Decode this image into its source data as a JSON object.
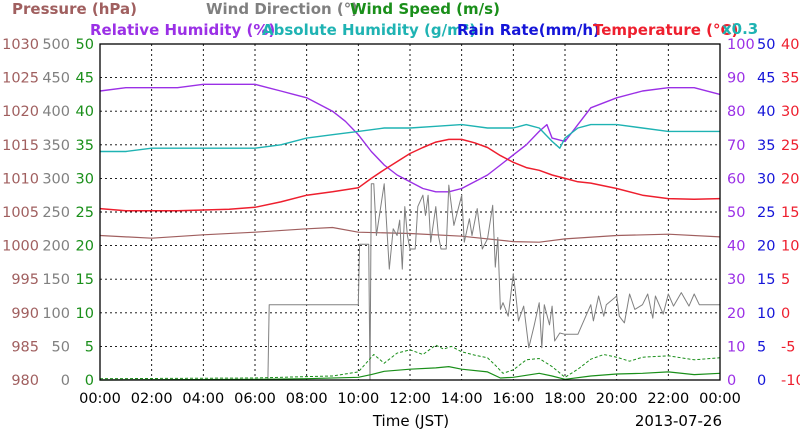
{
  "chart_data": {
    "type": "line",
    "date_label": "2013-07-26",
    "xlabel": "Time (JST)",
    "x_ticks": [
      "00:00",
      "02:00",
      "04:00",
      "06:00",
      "08:00",
      "10:00",
      "12:00",
      "14:00",
      "16:00",
      "18:00",
      "20:00",
      "22:00",
      "00:00"
    ],
    "x_range_hours": [
      0,
      24
    ],
    "legend_row1": [
      {
        "key": "pressure",
        "text": "Pressure (hPa)",
        "color": "#a05f5f"
      },
      {
        "key": "wind_dir",
        "text": "Wind Direction (°)",
        "color": "#808080"
      },
      {
        "key": "wind_speed",
        "text": "Wind Speed (m/s)",
        "color": "#1a8f1a"
      }
    ],
    "legend_row2": [
      {
        "key": "rh",
        "text": "Relative Humidity (%)",
        "color": "#9b30e6"
      },
      {
        "key": "ah",
        "text": "Absolute Humidity (g/m³)",
        "color": "#1fb3b3"
      },
      {
        "key": "rain",
        "text": "Rain Rate(mm/h)",
        "color": "#1515d8"
      },
      {
        "key": "temp",
        "text": "Temperature (°C)",
        "color": "#ee1f2e"
      }
    ],
    "ah_scale_note": "x0.3",
    "left_axes": [
      {
        "name": "pressure",
        "color": "#a05f5f",
        "range": [
          980,
          1030
        ],
        "ticks": [
          "1030",
          "1025",
          "1020",
          "1015",
          "1010",
          "1005",
          "1000",
          "995",
          "990",
          "985",
          "980"
        ]
      },
      {
        "name": "wind_direction",
        "color": "#808080",
        "range": [
          0,
          500
        ],
        "ticks": [
          "500",
          "450",
          "400",
          "350",
          "300",
          "250",
          "200",
          "150",
          "100",
          "50",
          "0"
        ]
      },
      {
        "name": "wind_speed",
        "color": "#1a8f1a",
        "range": [
          0,
          50
        ],
        "ticks": [
          "50",
          "45",
          "40",
          "35",
          "30",
          "25",
          "20",
          "15",
          "10",
          "5",
          "0"
        ]
      }
    ],
    "right_axes": [
      {
        "name": "humidity",
        "color": "#9b30e6",
        "range": [
          0,
          100
        ],
        "ticks": [
          "100",
          "90",
          "80",
          "70",
          "60",
          "50",
          "40",
          "30",
          "20",
          "10",
          "0"
        ]
      },
      {
        "name": "rain_rate",
        "color": "#1515d8",
        "range": [
          0,
          50
        ],
        "ticks": [
          "50",
          "45",
          "40",
          "35",
          "30",
          "25",
          "20",
          "15",
          "10",
          "5",
          "0"
        ]
      },
      {
        "name": "temperature",
        "color": "#ee1f2e",
        "range": [
          -10,
          40
        ],
        "ticks": [
          "40",
          "35",
          "30",
          "25",
          "20",
          "15",
          "10",
          "5",
          "0",
          "-5",
          "-10"
        ]
      }
    ],
    "grid": true,
    "series": [
      {
        "key": "rh",
        "name": "Relative Humidity",
        "axis": "humidity",
        "x": [
          0,
          1,
          2,
          3,
          4,
          5,
          6,
          6.5,
          7,
          7.5,
          8,
          8.5,
          9,
          9.5,
          10,
          10.5,
          11,
          11.5,
          12,
          12.5,
          13,
          13.5,
          14,
          14.5,
          15,
          15.5,
          16,
          16.5,
          17,
          17.3,
          17.5,
          18,
          18.5,
          19,
          20,
          21,
          22,
          23,
          24
        ],
        "y": [
          86,
          87,
          87,
          87,
          88,
          88,
          88,
          87,
          86,
          85,
          84,
          82,
          80,
          77,
          73,
          68,
          64,
          61,
          59,
          57,
          56,
          56,
          57,
          59,
          61,
          64,
          67,
          70,
          74,
          76,
          72,
          71,
          76,
          81,
          84,
          86,
          87,
          87,
          85
        ]
      },
      {
        "key": "temp",
        "name": "Temperature",
        "axis": "temperature",
        "x": [
          0,
          1,
          2,
          3,
          4,
          5,
          6,
          7,
          8,
          9,
          10,
          10.5,
          11,
          11.5,
          12,
          12.5,
          13,
          13.5,
          14,
          14.5,
          15,
          15.5,
          16,
          16.5,
          17,
          17.5,
          18,
          18.5,
          19,
          20,
          21,
          22,
          23,
          24
        ],
        "y": [
          15.5,
          15.2,
          15.2,
          15.2,
          15.3,
          15.4,
          15.7,
          16.5,
          17.5,
          18,
          18.6,
          20,
          21.3,
          22.5,
          23.7,
          24.6,
          25.4,
          25.8,
          25.8,
          25.3,
          24.6,
          23.4,
          22.4,
          21.6,
          21.2,
          20.5,
          20,
          19.5,
          19.3,
          18.5,
          17.5,
          17,
          16.9,
          17
        ]
      },
      {
        "key": "ah",
        "name": "Absolute Humidity",
        "axis": "humidity",
        "x": [
          0,
          1,
          2,
          3,
          4,
          5,
          6,
          7,
          8,
          9,
          10,
          11,
          12,
          13,
          14,
          15,
          16,
          16.5,
          17,
          17.5,
          17.8,
          18,
          18.5,
          19,
          20,
          21,
          22,
          23,
          24
        ],
        "y": [
          68,
          68,
          69,
          69,
          69,
          69,
          69,
          70,
          72,
          73,
          74,
          75,
          75,
          75.5,
          76,
          75,
          75,
          76,
          75,
          71,
          69,
          72,
          75,
          76,
          76,
          75,
          74,
          74,
          74
        ]
      },
      {
        "key": "pressure",
        "name": "Pressure",
        "axis": "pressure",
        "x": [
          0,
          2,
          4,
          6,
          8,
          9,
          10,
          12,
          14,
          16,
          17,
          18,
          20,
          22,
          24
        ],
        "y": [
          1001.5,
          1001.1,
          1001.6,
          1002,
          1002.5,
          1002.7,
          1002,
          1001.8,
          1001.4,
          1000.6,
          1000.5,
          1001,
          1001.5,
          1001.7,
          1001.3
        ]
      },
      {
        "key": "wind_dir",
        "name": "Wind Direction",
        "axis": "wind_direction",
        "x": [
          0,
          6.5,
          6.55,
          10,
          10.05,
          10.4,
          10.45,
          10.5,
          10.6,
          10.7,
          11,
          11.2,
          11.35,
          11.5,
          11.6,
          11.7,
          11.8,
          11.9,
          12,
          12.2,
          12.3,
          12.5,
          12.6,
          12.7,
          12.8,
          13,
          13.1,
          13.2,
          13.4,
          13.5,
          13.7,
          14,
          14.1,
          14.3,
          14.4,
          14.6,
          14.8,
          15,
          15.1,
          15.2,
          15.3,
          15.4,
          15.5,
          15.6,
          15.8,
          16,
          16.1,
          16.2,
          16.4,
          16.6,
          16.8,
          17,
          17.1,
          17.2,
          17.4,
          17.5,
          17.6,
          17.8,
          18,
          18.5,
          19,
          19.1,
          19.3,
          19.5,
          19.6,
          20,
          20.1,
          20.3,
          20.5,
          20.7,
          21,
          21.2,
          21.4,
          21.5,
          21.8,
          22,
          22.2,
          22.5,
          22.8,
          23,
          23.2,
          23.5,
          24
        ],
        "y": [
          0,
          0,
          112,
          112,
          202,
          202,
          0,
          292,
          292,
          215,
          292,
          165,
          225,
          215,
          238,
          165,
          258,
          215,
          195,
          195,
          258,
          275,
          245,
          275,
          205,
          258,
          215,
          195,
          195,
          290,
          230,
          275,
          205,
          240,
          215,
          255,
          195,
          210,
          235,
          260,
          168,
          212,
          105,
          115,
          95,
          158,
          125,
          88,
          110,
          48,
          80,
          115,
          48,
          112,
          82,
          110,
          58,
          70,
          68,
          68,
          112,
          88,
          125,
          95,
          112,
          125,
          95,
          85,
          128,
          105,
          112,
          128,
          92,
          125,
          98,
          128,
          110,
          130,
          110,
          128,
          112,
          112,
          112
        ]
      },
      {
        "key": "wind_speed",
        "name": "Wind Speed",
        "axis": "wind_speed",
        "x": [
          0,
          6,
          8,
          9,
          10,
          10.3,
          10.6,
          11,
          11.5,
          12,
          12.5,
          13,
          13.3,
          13.6,
          14,
          14.5,
          15,
          15.3,
          15.6,
          16,
          16.5,
          17,
          17.5,
          18,
          18.5,
          19,
          19.5,
          20,
          20.5,
          21,
          22,
          23,
          24
        ],
        "y": [
          0.2,
          0.3,
          0.5,
          0.6,
          1.2,
          2.5,
          3.8,
          2.5,
          4,
          4.5,
          3.8,
          5.2,
          4.6,
          5,
          4.2,
          3.7,
          3.3,
          2.2,
          1,
          1.5,
          3,
          3.2,
          2,
          0.4,
          1.6,
          3.1,
          3.8,
          3.4,
          2.8,
          3.4,
          3.6,
          3,
          3.3
        ]
      },
      {
        "key": "wind_speed_avg",
        "name": "Wind Speed",
        "axis": "wind_speed",
        "x": [
          0,
          6,
          8,
          10,
          10.5,
          11,
          12,
          13,
          13.5,
          14,
          15,
          15.5,
          16,
          17,
          17.5,
          18,
          19,
          20,
          21,
          22,
          23,
          24
        ],
        "y": [
          0,
          0.1,
          0.2,
          0.4,
          0.8,
          1.3,
          1.6,
          1.8,
          2,
          1.6,
          1.2,
          0.3,
          0.4,
          1,
          0.6,
          0.1,
          0.6,
          0.9,
          1,
          1.2,
          0.8,
          1
        ]
      },
      {
        "key": "rain",
        "name": "Rain Rate",
        "axis": "rain_rate",
        "x": [
          0,
          24
        ],
        "y": [
          0,
          0
        ]
      }
    ]
  }
}
